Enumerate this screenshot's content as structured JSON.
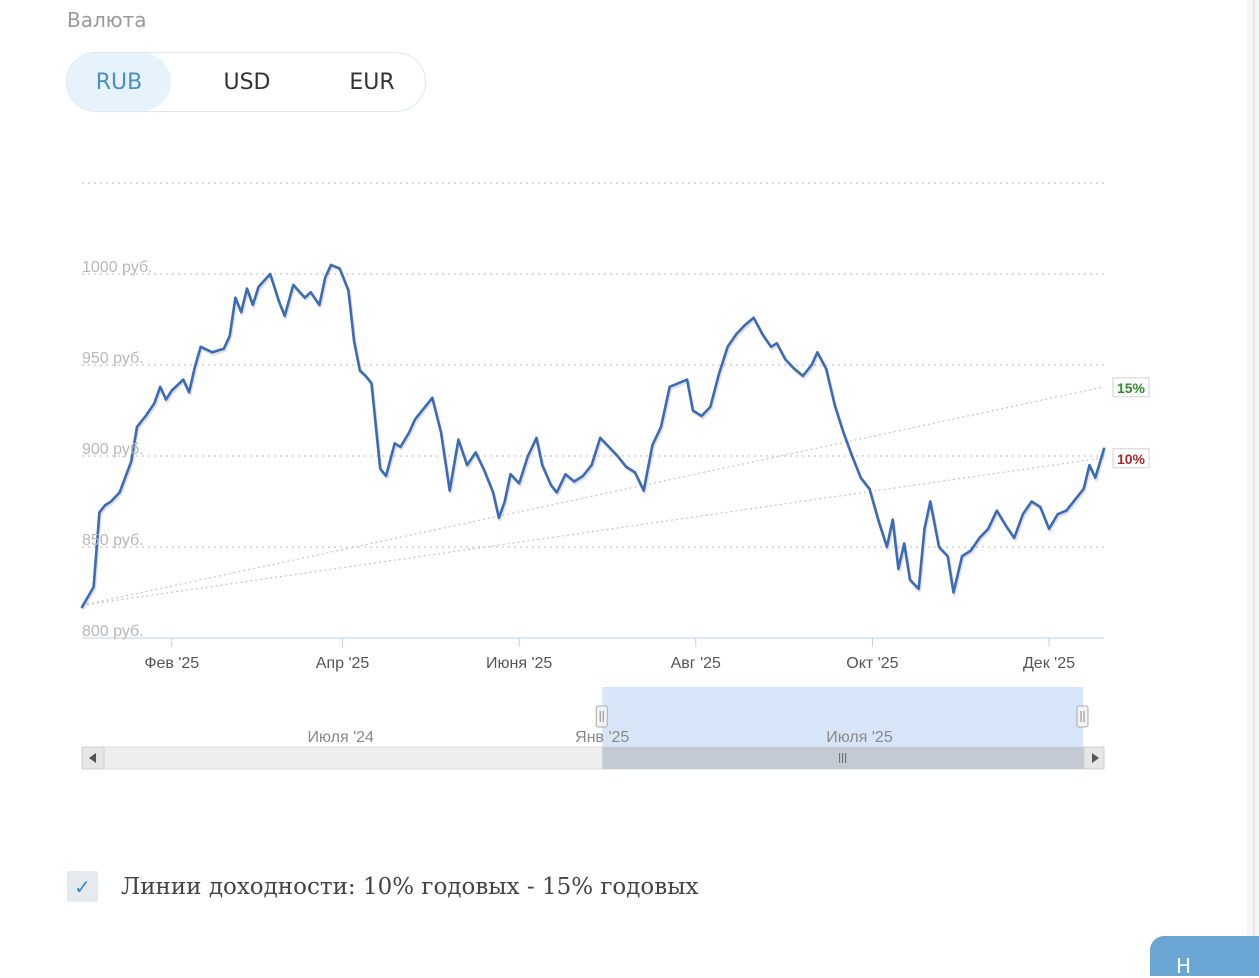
{
  "currency": {
    "label": "Валюта",
    "options": [
      "RUB",
      "USD",
      "EUR"
    ],
    "selected": "RUB"
  },
  "colors": {
    "series": "#3b6bb5",
    "accent": "#4a8fc6",
    "line15": "#2e8b2e",
    "line10": "#a52a2a"
  },
  "yield_lines": {
    "checked": true,
    "label": "Линии доходности: 10% годовых - 15% годовых"
  },
  "corner_button": {
    "label": "Н"
  },
  "chart_data": {
    "type": "line",
    "title": "",
    "xlabel": "",
    "ylabel": "",
    "y_tick_labels": [
      "800 руб.",
      "850 руб.",
      "900 руб.",
      "950 руб.",
      "1000 руб."
    ],
    "y_ticks": [
      800,
      850,
      900,
      950,
      1000
    ],
    "ylim": [
      800,
      1050
    ],
    "xlim": [
      "2025-01-01",
      "2025-12-20"
    ],
    "x_ticks": [
      {
        "date": "2025-02-01",
        "label": "Фев '25"
      },
      {
        "date": "2025-04-01",
        "label": "Апр '25"
      },
      {
        "date": "2025-06-01",
        "label": "Июня '25"
      },
      {
        "date": "2025-08-01",
        "label": "Авг '25"
      },
      {
        "date": "2025-10-01",
        "label": "Окт '25"
      },
      {
        "date": "2025-12-01",
        "label": "Дек '25"
      }
    ],
    "grid": true,
    "series": [
      {
        "color": "#3b6bb5",
        "points": [
          [
            "2025-01-01",
            817
          ],
          [
            "2025-01-05",
            828
          ],
          [
            "2025-01-07",
            869
          ],
          [
            "2025-01-09",
            873
          ],
          [
            "2025-01-11",
            875
          ],
          [
            "2025-01-14",
            880
          ],
          [
            "2025-01-18",
            897
          ],
          [
            "2025-01-20",
            916
          ],
          [
            "2025-01-23",
            922
          ],
          [
            "2025-01-26",
            929
          ],
          [
            "2025-01-28",
            938
          ],
          [
            "2025-01-30",
            931
          ],
          [
            "2025-02-01",
            936
          ],
          [
            "2025-02-05",
            942
          ],
          [
            "2025-02-07",
            935
          ],
          [
            "2025-02-09",
            949
          ],
          [
            "2025-02-11",
            960
          ],
          [
            "2025-02-15",
            957
          ],
          [
            "2025-02-19",
            959
          ],
          [
            "2025-02-21",
            966
          ],
          [
            "2025-02-23",
            987
          ],
          [
            "2025-02-25",
            979
          ],
          [
            "2025-02-27",
            992
          ],
          [
            "2025-03-01",
            983
          ],
          [
            "2025-03-03",
            993
          ],
          [
            "2025-03-07",
            1000
          ],
          [
            "2025-03-10",
            985
          ],
          [
            "2025-03-12",
            977
          ],
          [
            "2025-03-15",
            994
          ],
          [
            "2025-03-19",
            987
          ],
          [
            "2025-03-21",
            990
          ],
          [
            "2025-03-24",
            983
          ],
          [
            "2025-03-26",
            998
          ],
          [
            "2025-03-28",
            1005
          ],
          [
            "2025-03-31",
            1003
          ],
          [
            "2025-04-03",
            991
          ],
          [
            "2025-04-05",
            963
          ],
          [
            "2025-04-07",
            947
          ],
          [
            "2025-04-09",
            944
          ],
          [
            "2025-04-11",
            940
          ],
          [
            "2025-04-14",
            893
          ],
          [
            "2025-04-16",
            889
          ],
          [
            "2025-04-19",
            907
          ],
          [
            "2025-04-21",
            905
          ],
          [
            "2025-04-24",
            913
          ],
          [
            "2025-04-26",
            920
          ],
          [
            "2025-04-29",
            926
          ],
          [
            "2025-05-02",
            932
          ],
          [
            "2025-05-05",
            913
          ],
          [
            "2025-05-08",
            881
          ],
          [
            "2025-05-11",
            909
          ],
          [
            "2025-05-14",
            895
          ],
          [
            "2025-05-17",
            902
          ],
          [
            "2025-05-20",
            892
          ],
          [
            "2025-05-23",
            880
          ],
          [
            "2025-05-25",
            866
          ],
          [
            "2025-05-27",
            875
          ],
          [
            "2025-05-29",
            890
          ],
          [
            "2025-06-01",
            885
          ],
          [
            "2025-06-04",
            900
          ],
          [
            "2025-06-07",
            910
          ],
          [
            "2025-06-09",
            895
          ],
          [
            "2025-06-12",
            884
          ],
          [
            "2025-06-14",
            880
          ],
          [
            "2025-06-17",
            890
          ],
          [
            "2025-06-20",
            886
          ],
          [
            "2025-06-23",
            889
          ],
          [
            "2025-06-26",
            895
          ],
          [
            "2025-06-29",
            910
          ],
          [
            "2025-07-02",
            905
          ],
          [
            "2025-07-05",
            900
          ],
          [
            "2025-07-08",
            894
          ],
          [
            "2025-07-11",
            891
          ],
          [
            "2025-07-14",
            881
          ],
          [
            "2025-07-17",
            906
          ],
          [
            "2025-07-20",
            916
          ],
          [
            "2025-07-23",
            938
          ],
          [
            "2025-07-26",
            940
          ],
          [
            "2025-07-29",
            942
          ],
          [
            "2025-07-31",
            925
          ],
          [
            "2025-08-03",
            922
          ],
          [
            "2025-08-06",
            927
          ],
          [
            "2025-08-09",
            945
          ],
          [
            "2025-08-12",
            960
          ],
          [
            "2025-08-15",
            967
          ],
          [
            "2025-08-18",
            972
          ],
          [
            "2025-08-21",
            976
          ],
          [
            "2025-08-24",
            967
          ],
          [
            "2025-08-27",
            960
          ],
          [
            "2025-08-29",
            962
          ],
          [
            "2025-09-01",
            953
          ],
          [
            "2025-09-04",
            948
          ],
          [
            "2025-09-07",
            944
          ],
          [
            "2025-09-10",
            950
          ],
          [
            "2025-09-12",
            957
          ],
          [
            "2025-09-15",
            948
          ],
          [
            "2025-09-18",
            928
          ],
          [
            "2025-09-21",
            913
          ],
          [
            "2025-09-24",
            900
          ],
          [
            "2025-09-27",
            888
          ],
          [
            "2025-09-30",
            882
          ],
          [
            "2025-10-03",
            865
          ],
          [
            "2025-10-06",
            850
          ],
          [
            "2025-10-08",
            865
          ],
          [
            "2025-10-10",
            838
          ],
          [
            "2025-10-12",
            852
          ],
          [
            "2025-10-14",
            832
          ],
          [
            "2025-10-17",
            827
          ],
          [
            "2025-10-19",
            860
          ],
          [
            "2025-10-21",
            875
          ],
          [
            "2025-10-24",
            850
          ],
          [
            "2025-10-27",
            845
          ],
          [
            "2025-10-29",
            825
          ],
          [
            "2025-11-01",
            845
          ],
          [
            "2025-11-04",
            848
          ],
          [
            "2025-11-07",
            855
          ],
          [
            "2025-11-10",
            860
          ],
          [
            "2025-11-13",
            870
          ],
          [
            "2025-11-16",
            862
          ],
          [
            "2025-11-19",
            855
          ],
          [
            "2025-11-22",
            868
          ],
          [
            "2025-11-25",
            875
          ],
          [
            "2025-11-28",
            872
          ],
          [
            "2025-12-01",
            860
          ],
          [
            "2025-12-04",
            868
          ],
          [
            "2025-12-07",
            870
          ],
          [
            "2025-12-10",
            876
          ],
          [
            "2025-12-13",
            882
          ],
          [
            "2025-12-15",
            895
          ],
          [
            "2025-12-17",
            888
          ],
          [
            "2025-12-20",
            904
          ]
        ]
      }
    ],
    "reference_lines": [
      {
        "name": "15%",
        "from": [
          "2025-01-01",
          818
        ],
        "to": [
          "2025-12-20",
          938
        ],
        "color": "#2e8b2e"
      },
      {
        "name": "10%",
        "from": [
          "2025-01-01",
          818
        ],
        "to": [
          "2025-12-20",
          899
        ],
        "color": "#a52a2a"
      }
    ],
    "navigator": {
      "labels": [
        {
          "date": "2024-07-01",
          "label": "Июля '24"
        },
        {
          "date": "2025-01-01",
          "label": "Янв '25"
        },
        {
          "date": "2025-07-01",
          "label": "Июля '25"
        }
      ],
      "range_start": "2024-01-01",
      "range_end": "2025-12-20",
      "selected": [
        "2025-01-01",
        "2025-12-20"
      ]
    }
  }
}
